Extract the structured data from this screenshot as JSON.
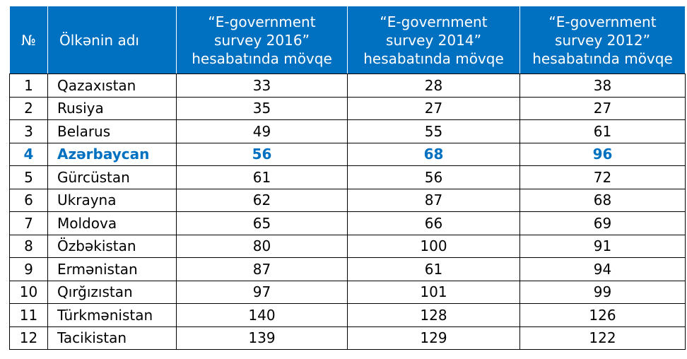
{
  "table": {
    "headers": {
      "no": "№",
      "name": "Ölkənin adı",
      "y2016": [
        "“E-government",
        "survey 2016”",
        "hesabatında mövqe"
      ],
      "y2014": [
        "“E-government",
        "survey 2014”",
        "hesabatında mövqe"
      ],
      "y2012": [
        "“E-government",
        "survey 2012”",
        "hesabatında mövqe"
      ]
    },
    "highlight_color": "#0070c0",
    "header_background": "#0070c0",
    "rows": [
      {
        "no": "1",
        "name": "Qazaxıstan",
        "y2016": "33",
        "y2014": "28",
        "y2012": "38"
      },
      {
        "no": "2",
        "name": "Rusiya",
        "y2016": "35",
        "y2014": "27",
        "y2012": "27"
      },
      {
        "no": "3",
        "name": "Belarus",
        "y2016": "49",
        "y2014": "55",
        "y2012": "61"
      },
      {
        "no": "4",
        "name": "Azərbaycan",
        "y2016": "56",
        "y2014": "68",
        "y2012": "96"
      },
      {
        "no": "5",
        "name": "Gürcüstan",
        "y2016": "61",
        "y2014": "56",
        "y2012": "72"
      },
      {
        "no": "6",
        "name": "Ukrayna",
        "y2016": "62",
        "y2014": "87",
        "y2012": "68"
      },
      {
        "no": "7",
        "name": "Moldova",
        "y2016": "65",
        "y2014": "66",
        "y2012": "69"
      },
      {
        "no": "8",
        "name": "Özbəkistan",
        "y2016": "80",
        "y2014": "100",
        "y2012": "91"
      },
      {
        "no": "9",
        "name": "Ermənistan",
        "y2016": "87",
        "y2014": "61",
        "y2012": "94"
      },
      {
        "no": "10",
        "name": "Qırğızıstan",
        "y2016": "97",
        "y2014": "101",
        "y2012": "99"
      },
      {
        "no": "11",
        "name": "Türkmənistan",
        "y2016": "140",
        "y2014": "128",
        "y2012": "126"
      },
      {
        "no": "12",
        "name": "Tacikistan",
        "y2016": "139",
        "y2014": "129",
        "y2012": "122"
      }
    ]
  }
}
